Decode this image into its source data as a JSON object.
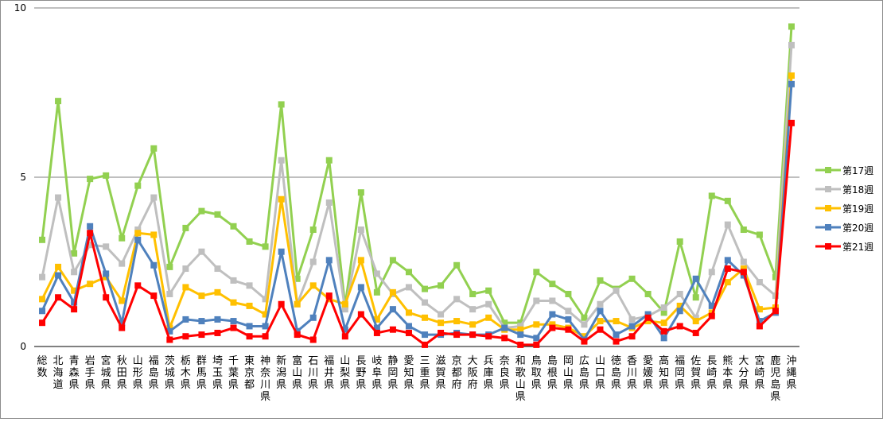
{
  "chart_data": {
    "type": "line",
    "title": "",
    "xlabel": "",
    "ylabel": "",
    "ylim": [
      0,
      10
    ],
    "yticks": [
      0,
      5,
      10
    ],
    "grid": true,
    "legend_position": "right",
    "categories": [
      "総数",
      "北海道",
      "青森県",
      "岩手県",
      "宮城県",
      "秋田県",
      "山形県",
      "福島県",
      "茨城県",
      "栃木県",
      "群馬県",
      "埼玉県",
      "千葉県",
      "東京都",
      "神奈川県",
      "新潟県",
      "富山県",
      "石川県",
      "福井県",
      "山梨県",
      "長野県",
      "岐阜県",
      "静岡県",
      "愛知県",
      "三重県",
      "滋賀県",
      "京都府",
      "大阪府",
      "兵庫県",
      "奈良県",
      "和歌山県",
      "鳥取県",
      "島根県",
      "岡山県",
      "広島県",
      "山口県",
      "徳島県",
      "香川県",
      "愛媛県",
      "高知県",
      "福岡県",
      "佐賀県",
      "長崎県",
      "熊本県",
      "大分県",
      "宮崎県",
      "鹿児島県",
      "沖縄県"
    ],
    "series": [
      {
        "name": "第17週",
        "color": "#92D050",
        "values": [
          3.15,
          7.25,
          2.75,
          4.95,
          5.05,
          3.2,
          4.75,
          5.85,
          2.35,
          3.5,
          4.0,
          3.9,
          3.55,
          3.1,
          2.95,
          7.15,
          2.0,
          3.45,
          5.5,
          1.2,
          4.55,
          1.6,
          2.55,
          2.2,
          1.7,
          1.8,
          2.4,
          1.55,
          1.65,
          0.7,
          0.7,
          2.2,
          1.85,
          1.55,
          0.85,
          1.95,
          1.7,
          2.0,
          1.55,
          1.0,
          3.1,
          1.45,
          4.45,
          4.3,
          3.45,
          3.3,
          2.05,
          9.45
        ]
      },
      {
        "name": "第18週",
        "color": "#BFBFBF",
        "values": [
          2.05,
          4.4,
          2.2,
          3.0,
          2.95,
          2.45,
          3.45,
          4.4,
          1.55,
          2.3,
          2.8,
          2.3,
          1.95,
          1.8,
          1.4,
          5.5,
          1.25,
          2.5,
          4.25,
          1.1,
          3.45,
          2.15,
          1.55,
          1.75,
          1.3,
          0.95,
          1.4,
          1.1,
          1.25,
          0.55,
          0.6,
          1.35,
          1.35,
          1.05,
          0.65,
          1.25,
          1.65,
          0.8,
          0.9,
          1.15,
          1.55,
          0.85,
          2.2,
          3.6,
          2.5,
          1.9,
          1.5,
          8.9
        ]
      },
      {
        "name": "第19週",
        "color": "#FFC000",
        "values": [
          1.4,
          2.35,
          1.65,
          1.85,
          2.05,
          1.35,
          3.35,
          3.3,
          0.55,
          1.75,
          1.5,
          1.6,
          1.3,
          1.2,
          0.95,
          4.35,
          1.25,
          1.8,
          1.4,
          1.25,
          2.55,
          0.8,
          1.6,
          1.0,
          0.85,
          0.7,
          0.75,
          0.65,
          0.85,
          0.5,
          0.5,
          0.65,
          0.65,
          0.55,
          0.3,
          0.75,
          0.75,
          0.55,
          0.75,
          0.7,
          1.2,
          0.75,
          1.0,
          1.9,
          2.3,
          1.1,
          1.15,
          8.0
        ]
      },
      {
        "name": "第20週",
        "color": "#4F81BD",
        "values": [
          1.05,
          2.1,
          1.3,
          3.55,
          2.15,
          0.7,
          3.15,
          2.4,
          0.45,
          0.8,
          0.75,
          0.8,
          0.75,
          0.6,
          0.6,
          2.8,
          0.45,
          0.85,
          2.55,
          0.5,
          1.75,
          0.55,
          1.1,
          0.6,
          0.35,
          0.35,
          0.4,
          0.35,
          0.35,
          0.55,
          0.35,
          0.25,
          0.95,
          0.8,
          0.2,
          1.05,
          0.35,
          0.6,
          0.95,
          0.25,
          1.05,
          2.0,
          1.2,
          2.55,
          2.1,
          0.75,
          1.0,
          7.75
        ]
      },
      {
        "name": "第21週",
        "color": "#FF0000",
        "values": [
          0.7,
          1.45,
          1.1,
          3.35,
          1.45,
          0.55,
          1.8,
          1.5,
          0.2,
          0.3,
          0.35,
          0.4,
          0.55,
          0.3,
          0.3,
          1.25,
          0.35,
          0.2,
          1.5,
          0.3,
          0.95,
          0.4,
          0.5,
          0.4,
          0.05,
          0.4,
          0.35,
          0.35,
          0.3,
          0.25,
          0.05,
          0.05,
          0.55,
          0.5,
          0.15,
          0.5,
          0.15,
          0.3,
          0.85,
          0.45,
          0.6,
          0.4,
          0.9,
          2.3,
          2.2,
          0.6,
          1.05,
          6.6
        ]
      }
    ]
  }
}
